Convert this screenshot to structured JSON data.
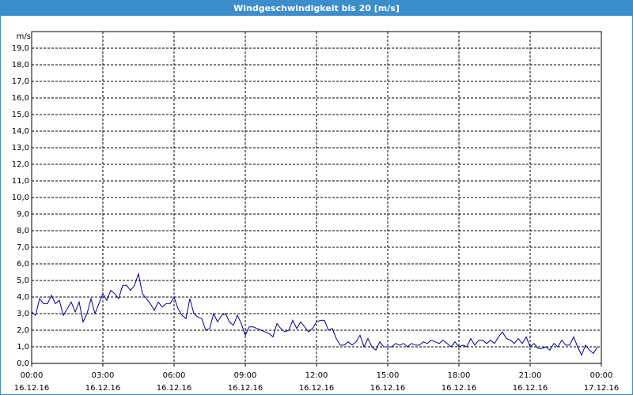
{
  "chart_data": {
    "type": "line",
    "title": "Windgeschwindigkeit bis 20 [m/s]",
    "y_unit": "m/s",
    "x": [
      0,
      10,
      20,
      30,
      40,
      50,
      60,
      70,
      80,
      90,
      100,
      110,
      120,
      130,
      140,
      150,
      160,
      170,
      180,
      190,
      200,
      210,
      220,
      230,
      240,
      250,
      260,
      270,
      280,
      290,
      300,
      310,
      320,
      330,
      340,
      350,
      360,
      370,
      380,
      390,
      400,
      410,
      420,
      430,
      440,
      450,
      460,
      470,
      480,
      490,
      500,
      510,
      520,
      530,
      540,
      550,
      560,
      570,
      580,
      590,
      600,
      610,
      620,
      630,
      640,
      650,
      660,
      670,
      680,
      690,
      700,
      710,
      720,
      730,
      740,
      750,
      760,
      770,
      780,
      790,
      800,
      810,
      820,
      830,
      840,
      850,
      860,
      870,
      880,
      890,
      900,
      910,
      920,
      930,
      940,
      950,
      960,
      970,
      980,
      990,
      1000,
      1010,
      1020,
      1030,
      1040,
      1050,
      1060,
      1070,
      1080,
      1090,
      1100,
      1110,
      1120,
      1130,
      1140,
      1150,
      1160,
      1170,
      1180,
      1190,
      1200,
      1210,
      1220,
      1230,
      1240,
      1250,
      1260,
      1270,
      1280,
      1290,
      1300,
      1310,
      1320,
      1330,
      1340,
      1350,
      1360,
      1370,
      1380,
      1390,
      1400,
      1410,
      1420,
      1430
    ],
    "series": [
      {
        "color": "#00008b",
        "values": [
          3.1,
          2.9,
          3.9,
          3.6,
          3.6,
          4.1,
          3.6,
          3.8,
          2.9,
          3.3,
          3.7,
          3.1,
          3.7,
          2.5,
          3.0,
          3.9,
          3.0,
          3.6,
          4.2,
          3.8,
          4.4,
          4.2,
          3.9,
          4.7,
          4.7,
          4.4,
          4.7,
          5.4,
          4.2,
          3.9,
          3.6,
          3.2,
          3.7,
          3.4,
          3.6,
          3.6,
          4.0,
          3.3,
          2.9,
          2.7,
          3.9,
          3.0,
          2.8,
          2.7,
          2.0,
          2.1,
          3.0,
          2.5,
          2.9,
          3.0,
          2.5,
          2.3,
          2.9,
          2.4,
          1.7,
          2.2,
          2.2,
          2.1,
          2.0,
          1.9,
          1.8,
          1.6,
          2.4,
          2.1,
          1.9,
          2.0,
          2.6,
          2.1,
          2.5,
          2.2,
          1.9,
          2.1,
          2.5,
          2.6,
          2.6,
          2.0,
          2.1,
          1.5,
          1.1,
          1.1,
          1.3,
          1.1,
          1.3,
          1.7,
          1.0,
          1.5,
          1.0,
          0.8,
          1.3,
          1.0,
          1.0,
          1.0,
          1.2,
          1.1,
          1.2,
          1.0,
          1.2,
          1.1,
          1.1,
          1.3,
          1.2,
          1.4,
          1.3,
          1.2,
          1.4,
          1.2,
          1.0,
          1.3,
          1.0,
          1.1,
          1.0,
          1.5,
          1.1,
          1.4,
          1.4,
          1.2,
          1.4,
          1.2,
          1.6,
          1.9,
          1.5,
          1.4,
          1.2,
          1.5,
          1.2,
          1.6,
          1.0,
          1.2,
          0.9,
          0.9,
          1.0,
          0.8,
          1.2,
          1.0,
          1.4,
          1.1,
          1.1,
          1.6,
          1.0,
          0.5,
          1.1,
          0.8,
          0.6,
          1.0
        ]
      }
    ],
    "xlim": [
      0,
      1440
    ],
    "xticks": [
      {
        "value": 0,
        "label": "00:00"
      },
      {
        "value": 180,
        "label": "03:00"
      },
      {
        "value": 360,
        "label": "06:00"
      },
      {
        "value": 540,
        "label": "09:00"
      },
      {
        "value": 720,
        "label": "12:00"
      },
      {
        "value": 900,
        "label": "15:00"
      },
      {
        "value": 1080,
        "label": "18:00"
      },
      {
        "value": 1260,
        "label": "21:00"
      },
      {
        "value": 1440,
        "label": "00:00"
      }
    ],
    "xtick_dates": [
      "16.12.16",
      "16.12.16",
      "16.12.16",
      "16.12.16",
      "16.12.16",
      "16.12.16",
      "16.12.16",
      "16.12.16",
      "17.12.16"
    ],
    "ylim": [
      0,
      20
    ],
    "yticks": [
      {
        "value": 0,
        "label": "0,0"
      },
      {
        "value": 1,
        "label": "1,0"
      },
      {
        "value": 2,
        "label": "2,0"
      },
      {
        "value": 3,
        "label": "3,0"
      },
      {
        "value": 4,
        "label": "4,0"
      },
      {
        "value": 5,
        "label": "5,0"
      },
      {
        "value": 6,
        "label": "6,0"
      },
      {
        "value": 7,
        "label": "7,0"
      },
      {
        "value": 8,
        "label": "8,0"
      },
      {
        "value": 9,
        "label": "9,0"
      },
      {
        "value": 10,
        "label": "10,0"
      },
      {
        "value": 11,
        "label": "11,0"
      },
      {
        "value": 12,
        "label": "12,0"
      },
      {
        "value": 13,
        "label": "13,0"
      },
      {
        "value": 14,
        "label": "14,0"
      },
      {
        "value": 15,
        "label": "15,0"
      },
      {
        "value": 16,
        "label": "16,0"
      },
      {
        "value": 17,
        "label": "17,0"
      },
      {
        "value": 18,
        "label": "18,0"
      },
      {
        "value": 19,
        "label": "19,0"
      }
    ],
    "grid": true
  }
}
